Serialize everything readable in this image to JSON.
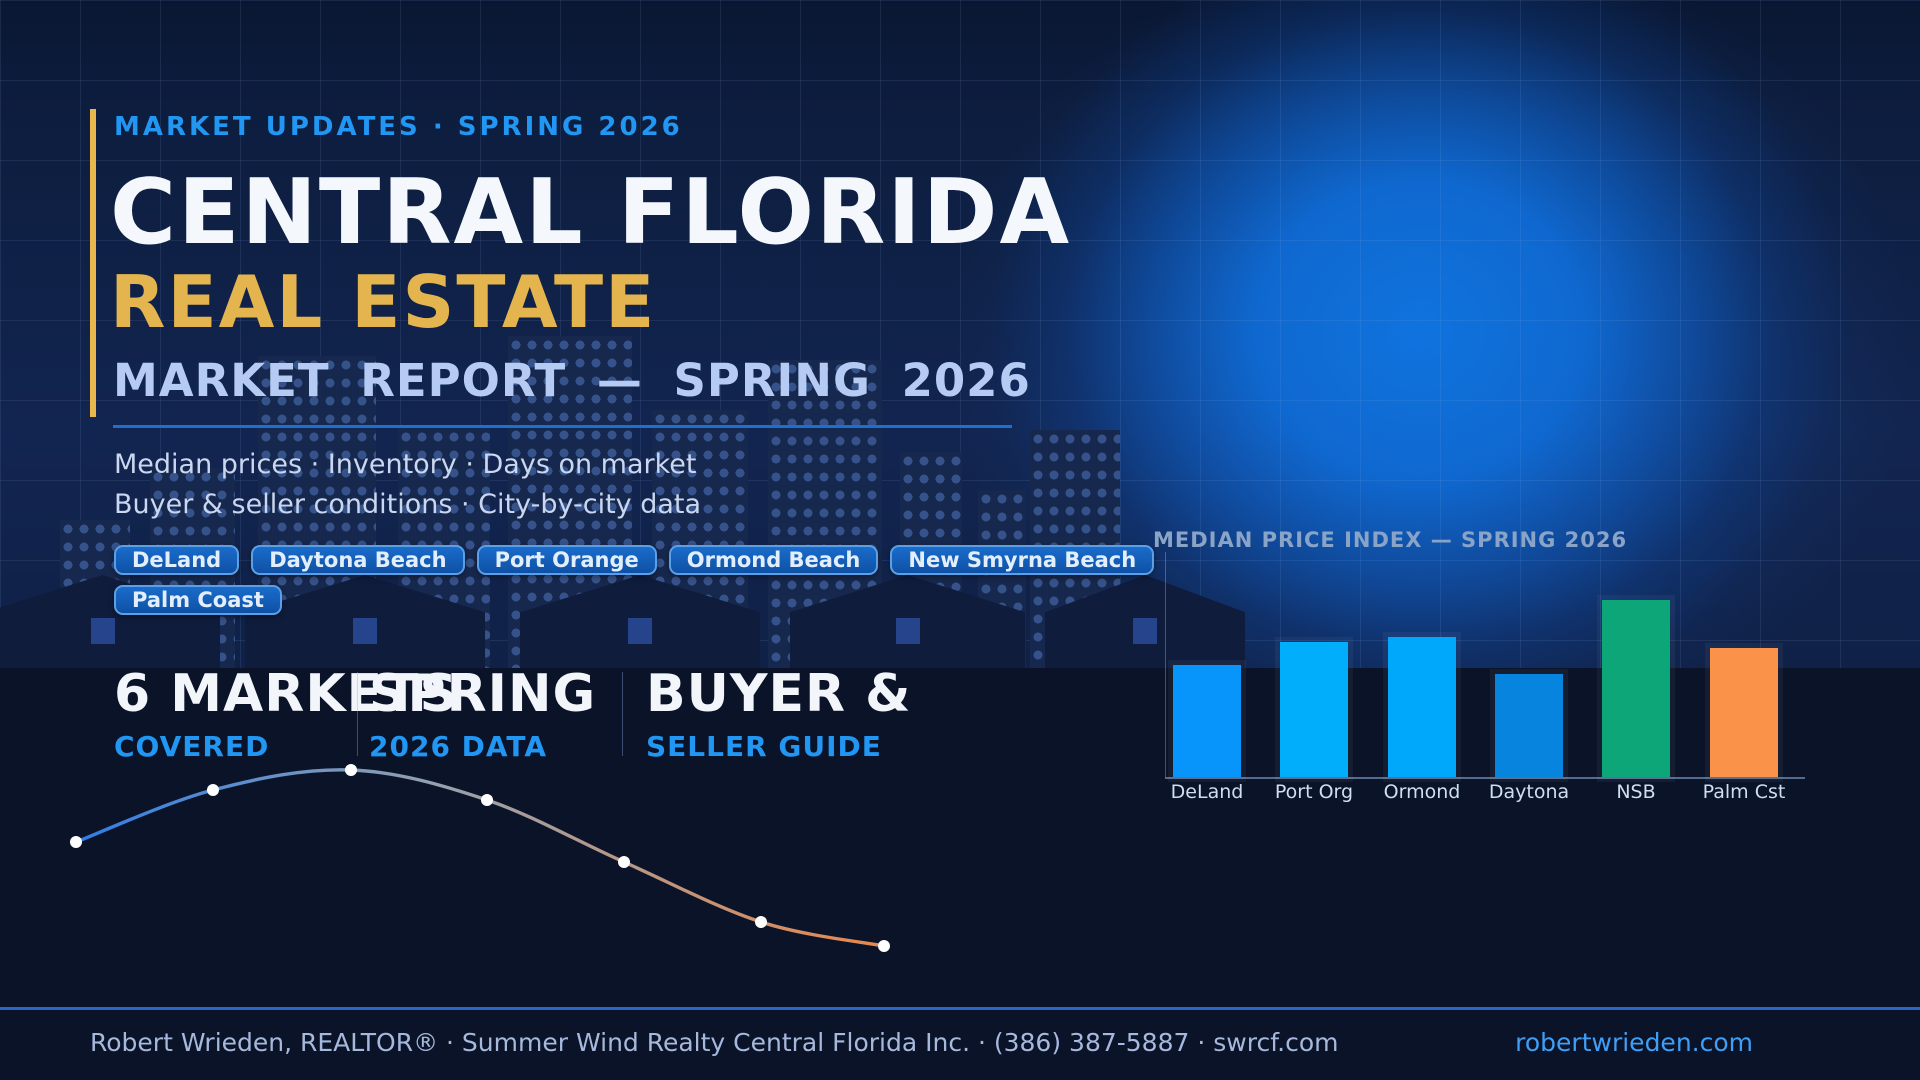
{
  "poster": {
    "eyebrow": "MARKET UPDATES · SPRING 2026",
    "title_line1": "CENTRAL FLORIDA",
    "title_line2": "REAL ESTATE",
    "subheading": "MARKET REPORT — SPRING 2026",
    "description_line1": "Median prices · Inventory · Days on market",
    "description_line2": "Buyer & seller conditions · City-by-city data"
  },
  "city_chips": [
    "DeLand",
    "Daytona Beach",
    "Port Orange",
    "Ormond Beach",
    "New Smyrna Beach",
    "Palm Coast"
  ],
  "stats": [
    {
      "value": "6 MARKETS",
      "label": "COVERED"
    },
    {
      "value": "SPRING",
      "label": "2026 DATA"
    },
    {
      "value": "BUYER &",
      "label": "SELLER GUIDE"
    }
  ],
  "chart_data": [
    {
      "type": "bar",
      "title": "MEDIAN PRICE INDEX — SPRING 2026",
      "categories": [
        "DeLand",
        "Port Org",
        "Ormond",
        "Daytona",
        "NSB",
        "Palm Cst"
      ],
      "values": [
        63,
        76,
        79,
        58,
        100,
        73
      ],
      "values_unit": "relative index height, % of tallest bar (no numeric labels shown in image)",
      "bar_colors": [
        "#0795fb",
        "#00aefc",
        "#00a8fc",
        "#0784dd",
        "#0ca678",
        "#fb9249"
      ],
      "xlabel": "",
      "ylabel": "",
      "ylim": [
        0,
        110
      ],
      "grid": false,
      "legend": false
    },
    {
      "type": "line",
      "title": "",
      "name": "decorative price-trend curve (unlabeled, blue-to-orange gradient with white markers)",
      "x": [
        1,
        2,
        3,
        4,
        5,
        6,
        7
      ],
      "values": [
        74,
        100,
        110,
        95,
        64,
        34,
        22
      ],
      "marker_color": "#ffffff",
      "line_gradient": [
        "#2f7de5",
        "#96a1ae",
        "#e8884d"
      ],
      "grid": false,
      "legend": false
    }
  ],
  "footer": {
    "info": "Robert Wrieden, REALTOR® · Summer Wind Realty Central Florida Inc. · (386) 387-5887 · swrcf.com",
    "website": "robertwrieden.com"
  },
  "colors": {
    "accent_blue": "#2196f3",
    "accent_gold": "#e9b74b",
    "heading_light_blue": "#b6cbf3",
    "glow_blue": "#0d71d6",
    "link_blue": "#3f9ef5",
    "chart_title_gray": "#8aa4c8",
    "background_navy": "#122550",
    "band_dark": "#0b1328"
  }
}
